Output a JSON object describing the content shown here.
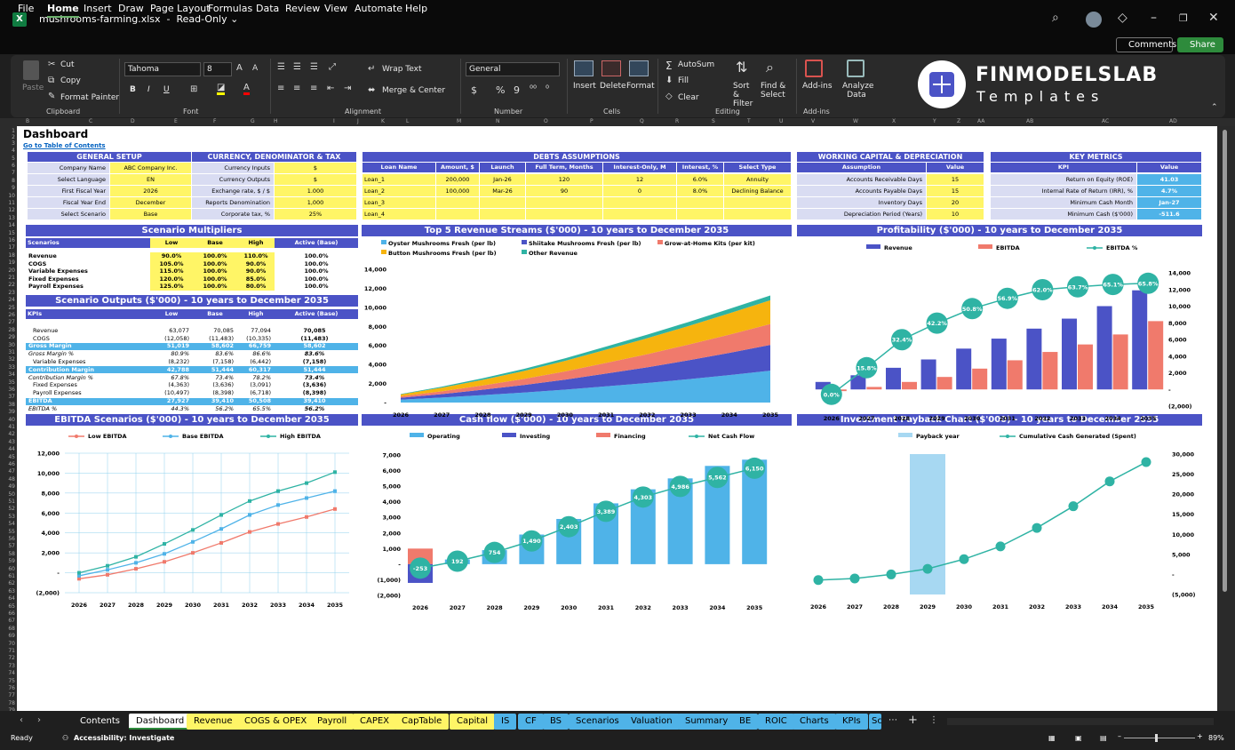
{
  "window": {
    "file_name": "mushrooms-farming.xlsx",
    "mode": "Read-Only ⌄",
    "logo_letter": "X"
  },
  "menu": {
    "items": [
      "File",
      "Home",
      "Insert",
      "Draw",
      "Page Layout",
      "Formulas",
      "Data",
      "Review",
      "View",
      "Automate",
      "Help"
    ],
    "comments": "Comments",
    "share": "Share"
  },
  "ribbon": {
    "paste": "Paste",
    "cut": "Cut",
    "copy": "Copy",
    "format_painter": "Format Painter",
    "clipboard": "Clipboard",
    "font_name": "Tahoma",
    "font_size": "8",
    "font_group": "Font",
    "bold": "B",
    "italic": "I",
    "underline": "U",
    "wrap_text": "Wrap Text",
    "merge_center": "Merge & Center",
    "alignment": "Alignment",
    "number_format": "General",
    "number": "Number",
    "insert": "Insert",
    "delete": "Delete",
    "format": "Format",
    "cells": "Cells",
    "autosum": "AutoSum",
    "fill": "Fill",
    "clear": "Clear",
    "sort_filter": "Sort & Filter",
    "find_select": "Find & Select",
    "editing": "Editing",
    "addins": "Add-ins",
    "analyze": "Analyze Data",
    "addins_group": "Add-ins",
    "brand_top": "FINMODELSLAB",
    "brand_bottom": "Templates"
  },
  "columns": [
    "B",
    "C",
    "D",
    "E",
    "F",
    "G",
    "H",
    "I",
    "J",
    "K",
    "L",
    "M",
    "N",
    "O",
    "P",
    "Q",
    "R",
    "S",
    "T",
    "U",
    "V",
    "W",
    "X",
    "Y",
    "Z",
    "AA",
    "AB",
    "AC",
    "AD"
  ],
  "rows": [
    "1",
    "2",
    "3",
    "4",
    "5",
    "6",
    "7",
    "8",
    "9",
    "10",
    "11",
    "12",
    "13",
    "14",
    "15",
    "16",
    "17",
    "18",
    "19",
    "20",
    "21",
    "22",
    "23",
    "24",
    "25",
    "26",
    "27",
    "28",
    "29",
    "30",
    "31",
    "32",
    "33",
    "34",
    "35",
    "36",
    "37",
    "38",
    "39",
    "40",
    "41",
    "42",
    "43",
    "44",
    "45",
    "46",
    "47",
    "48",
    "49",
    "50",
    "51",
    "52",
    "53",
    "54",
    "55",
    "56",
    "57",
    "58",
    "59",
    "60",
    "61",
    "62",
    "63",
    "64",
    "65",
    "66",
    "67",
    "68",
    "69",
    "70",
    "71",
    "72",
    "73",
    "74",
    "75",
    "76",
    "77",
    "78",
    "79"
  ],
  "dashboard": {
    "title": "Dashboard",
    "goto": "Go to Table of Contents"
  },
  "general": {
    "header": "GENERAL SETUP",
    "rows": [
      {
        "label": "Company Name",
        "value": "ABC Company Inc."
      },
      {
        "label": "Select Language",
        "value": "EN"
      },
      {
        "label": "First Fiscal Year",
        "value": "2026"
      },
      {
        "label": "Fiscal Year End",
        "value": "December"
      },
      {
        "label": "Select Scenario",
        "value": "Base"
      }
    ]
  },
  "currency": {
    "header": "CURRENCY, DENOMINATOR & TAX",
    "rows": [
      {
        "label": "Currency Inputs",
        "value": "$"
      },
      {
        "label": "Currency Outputs",
        "value": "$"
      },
      {
        "label": "Exchange rate, $ / $",
        "value": "1.000"
      },
      {
        "label": "Reports Denomination",
        "value": "1,000"
      },
      {
        "label": "Corporate tax, %",
        "value": "25%"
      }
    ]
  },
  "debts": {
    "header": "DEBTS ASSUMPTIONS",
    "cols": [
      "Loan Name",
      "Amount, $",
      "Launch",
      "Full Term, Months",
      "Interest-Only, M",
      "Interest, %",
      "Select Type"
    ],
    "rows": [
      [
        "Loan_1",
        "200,000",
        "Jan-26",
        "120",
        "12",
        "6.0%",
        "Annuity"
      ],
      [
        "Loan_2",
        "100,000",
        "Mar-26",
        "90",
        "0",
        "8.0%",
        "Declining Balance"
      ],
      [
        "Loan_3",
        "",
        "",
        "",
        "",
        "",
        ""
      ],
      [
        "Loan_4",
        "",
        "",
        "",
        "",
        "",
        ""
      ]
    ]
  },
  "wc": {
    "header": "WORKING CAPITAL & DEPRECIATION",
    "col1": "Assumption",
    "col2": "Value",
    "rows": [
      {
        "label": "Accounts Receivable Days",
        "value": "15"
      },
      {
        "label": "Accounts Payable Days",
        "value": "15"
      },
      {
        "label": "Inventory Days",
        "value": "20"
      },
      {
        "label": "Depreciation Period (Years)",
        "value": "10"
      }
    ]
  },
  "metrics": {
    "header": "KEY METRICS",
    "col1": "KPI",
    "col2": "Value",
    "rows": [
      {
        "label": "Return on Equity (ROE)",
        "value": "41.03"
      },
      {
        "label": "Internal Rate of Return (IRR), %",
        "value": "4.7%"
      },
      {
        "label": "Minimum Cash Month",
        "value": "Jan-27"
      },
      {
        "label": "Minimum Cash ($'000)",
        "value": "-511.6"
      }
    ]
  },
  "multipliers": {
    "title": "Scenario Multipliers",
    "cols": [
      "Scenarios",
      "Low",
      "Base",
      "High",
      "Active (Base)"
    ],
    "rows": [
      [
        "Revenue",
        "90.0%",
        "100.0%",
        "110.0%",
        "100.0%"
      ],
      [
        "COGS",
        "105.0%",
        "100.0%",
        "90.0%",
        "100.0%"
      ],
      [
        "Variable Expenses",
        "115.0%",
        "100.0%",
        "90.0%",
        "100.0%"
      ],
      [
        "Fixed Expenses",
        "120.0%",
        "100.0%",
        "85.0%",
        "100.0%"
      ],
      [
        "Payroll Expenses",
        "125.0%",
        "100.0%",
        "80.0%",
        "100.0%"
      ]
    ]
  },
  "outputs": {
    "title": "Scenario Outputs ($'000) - 10 years to December 2035",
    "cols": [
      "KPIs",
      "Low",
      "Base",
      "High",
      "Active (Base)"
    ],
    "rows": [
      [
        "",
        "",
        "",
        "",
        ""
      ],
      [
        "Revenue",
        "63,077",
        "70,085",
        "77,094",
        "70,085"
      ],
      [
        "COGS",
        "(12,058)",
        "(11,483)",
        "(10,335)",
        "(11,483)"
      ],
      [
        "Gross Margin",
        "51,019",
        "58,602",
        "66,759",
        "58,602"
      ],
      [
        "Gross Margin %",
        "80.9%",
        "83.6%",
        "86.6%",
        "83.6%"
      ],
      [
        "Variable Expenses",
        "(8,232)",
        "(7,158)",
        "(6,442)",
        "(7,158)"
      ],
      [
        "Contribution Margin",
        "42,788",
        "51,444",
        "60,317",
        "51,444"
      ],
      [
        "Contribution Margin %",
        "67.8%",
        "73.4%",
        "78.2%",
        "73.4%"
      ],
      [
        "Fixed Expenses",
        "(4,363)",
        "(3,636)",
        "(3,091)",
        "(3,636)"
      ],
      [
        "Payroll Expenses",
        "(10,497)",
        "(8,398)",
        "(6,718)",
        "(8,398)"
      ],
      [
        "EBITDA",
        "27,927",
        "39,410",
        "50,508",
        "39,410"
      ],
      [
        "EBITDA %",
        "44.3%",
        "56.2%",
        "65.5%",
        "56.2%"
      ]
    ]
  },
  "chart_data": [
    {
      "type": "area",
      "title": "Top 5 Revenue Streams ($'000) - 10 years to December 2035",
      "x": [
        "2026",
        "2027",
        "2028",
        "2029",
        "2030",
        "2031",
        "2032",
        "2033",
        "2034",
        "2035"
      ],
      "yticks": [
        "14,000",
        "12,000",
        "10,000",
        "8,000",
        "6,000",
        "4,000",
        "2,000",
        "-"
      ],
      "ylim": [
        0,
        14000
      ],
      "legend_position": "top",
      "series": [
        {
          "name": "Oyster Mushrooms Fresh (per lb)",
          "color": "#4fb3e8",
          "values": [
            300,
            520,
            780,
            1050,
            1350,
            1700,
            2050,
            2450,
            2880,
            3350
          ]
        },
        {
          "name": "Shiitake Mushrooms Fresh (per lb)",
          "color": "#4b53c6",
          "values": [
            200,
            370,
            570,
            790,
            1050,
            1350,
            1650,
            1980,
            2330,
            2700
          ]
        },
        {
          "name": "Grow-at-Home Kits (per kit)",
          "color": "#f07a6c",
          "values": [
            150,
            290,
            450,
            640,
            870,
            1120,
            1380,
            1650,
            1920,
            2200
          ]
        },
        {
          "name": "Button Mushrooms Fresh (per lb)",
          "color": "#f6b40e",
          "values": [
            200,
            380,
            590,
            830,
            1100,
            1380,
            1670,
            1950,
            2240,
            2500
          ]
        },
        {
          "name": "Other Revenue",
          "color": "#2fb3a4",
          "values": [
            50,
            110,
            170,
            220,
            270,
            330,
            380,
            420,
            460,
            500
          ]
        }
      ]
    },
    {
      "type": "bar",
      "title": "Profitability ($'000) - 10 years to December 2035",
      "x": [
        "2026",
        "2027",
        "2028",
        "2029",
        "2030",
        "2031",
        "2032",
        "2033",
        "2034",
        "2035"
      ],
      "yticks": [
        "14,000",
        "12,000",
        "10,000",
        "8,000",
        "6,000",
        "4,000",
        "2,000",
        "-",
        "(2,000)"
      ],
      "ylim": [
        -2000,
        14000
      ],
      "legend_position": "top",
      "series": [
        {
          "name": "Revenue",
          "color": "#4b53c6",
          "values": [
            900,
            1700,
            2600,
            3600,
            4900,
            6100,
            7300,
            8500,
            10000,
            11900
          ]
        },
        {
          "name": "EBITDA",
          "color": "#f07a6c",
          "values": [
            -200,
            300,
            900,
            1500,
            2500,
            3500,
            4500,
            5400,
            6600,
            8200
          ]
        },
        {
          "name": "EBITDA %",
          "color": "#2fb3a4",
          "values": [
            0.0,
            15.8,
            32.4,
            42.2,
            50.8,
            56.9,
            62.0,
            63.7,
            65.1,
            65.8
          ],
          "labels": [
            "0.0%",
            "15.8%",
            "32.4%",
            "42.2%",
            "50.8%",
            "56.9%",
            "62.0%",
            "63.7%",
            "65.1%",
            "65.8%"
          ]
        }
      ]
    },
    {
      "type": "line",
      "title": "EBITDA Scenarios ($'000) - 10 years to December 2035",
      "x": [
        "2026",
        "2027",
        "2028",
        "2029",
        "2030",
        "2031",
        "2032",
        "2033",
        "2034",
        "2035"
      ],
      "yticks": [
        "12,000",
        "10,000",
        "8,000",
        "6,000",
        "4,000",
        "2,000",
        "-",
        "(2,000)"
      ],
      "ylim": [
        -2000,
        12000
      ],
      "legend_position": "top",
      "series": [
        {
          "name": "Low EBITDA",
          "color": "#f07a6c",
          "values": [
            -600,
            -200,
            400,
            1100,
            2000,
            3000,
            4100,
            4900,
            5600,
            6400
          ]
        },
        {
          "name": "Base EBITDA",
          "color": "#4fb3e8",
          "values": [
            -300,
            300,
            1000,
            1900,
            3100,
            4400,
            5800,
            6800,
            7500,
            8200
          ]
        },
        {
          "name": "High EBITDA",
          "color": "#2fb3a4",
          "values": [
            0,
            700,
            1600,
            2900,
            4300,
            5800,
            7200,
            8200,
            9000,
            10100
          ]
        }
      ]
    },
    {
      "type": "bar",
      "title": "Cash flow ($'000) - 10 years to December 2035",
      "x": [
        "2026",
        "2027",
        "2028",
        "2029",
        "2030",
        "2031",
        "2032",
        "2033",
        "2034",
        "2035"
      ],
      "yticks": [
        "7,000",
        "6,000",
        "5,000",
        "4,000",
        "3,000",
        "2,000",
        "1,000",
        "-",
        "(1,000)",
        "(2,000)"
      ],
      "ylim": [
        -2000,
        7000
      ],
      "legend_position": "top",
      "series": [
        {
          "name": "Operating",
          "color": "#4fb3e8",
          "values": [
            -300,
            300,
            900,
            1900,
            2900,
            3900,
            4800,
            5500,
            6300,
            6700
          ]
        },
        {
          "name": "Investing",
          "color": "#4b53c6",
          "values": [
            -1200,
            0,
            0,
            0,
            0,
            0,
            0,
            0,
            0,
            0
          ]
        },
        {
          "name": "Financing",
          "color": "#f07a6c",
          "values": [
            1000,
            0,
            0,
            0,
            0,
            0,
            0,
            0,
            0,
            0
          ]
        },
        {
          "name": "Net Cash Flow",
          "color": "#2fb3a4",
          "values": [
            -253,
            192,
            754,
            1490,
            2403,
            3389,
            4303,
            4986,
            5562,
            6150
          ],
          "labels": [
            "-253",
            "192",
            "754",
            "1,490",
            "2,403",
            "3,389",
            "4,303",
            "4,986",
            "5,562",
            "6,150"
          ]
        }
      ]
    },
    {
      "type": "line",
      "title": "Investment Payback Chart ($'000) - 10 years to December 2035",
      "x": [
        "2026",
        "2027",
        "2028",
        "2029",
        "2030",
        "2031",
        "2032",
        "2033",
        "2034",
        "2035"
      ],
      "yticks": [
        "30,000",
        "25,000",
        "20,000",
        "15,000",
        "10,000",
        "5,000",
        "-",
        "(5,000)"
      ],
      "ylim": [
        -5000,
        30000
      ],
      "legend_position": "top",
      "series": [
        {
          "name": "Payback year",
          "color": "#a7d8f2",
          "highlight": "2029"
        },
        {
          "name": "Cumulative Cash Generated (Spent)",
          "color": "#2fb3a4",
          "values": [
            -700,
            -500,
            0,
            700,
            1900,
            3500,
            5800,
            8500,
            11600,
            14000
          ]
        }
      ]
    }
  ],
  "tabs": [
    "Contents",
    "Dashboard",
    "Revenue",
    "COGS & OPEX",
    "Payroll",
    "CAPEX",
    "CapTable",
    "Capital",
    "IS",
    "CF",
    "BS",
    "Scenarios",
    "Valuation",
    "Summary",
    "BE",
    "ROIC",
    "Charts",
    "KPIs",
    "Sc"
  ],
  "status": {
    "ready": "Ready",
    "accessibility": "Accessibility: Investigate",
    "zoom": "89%"
  }
}
